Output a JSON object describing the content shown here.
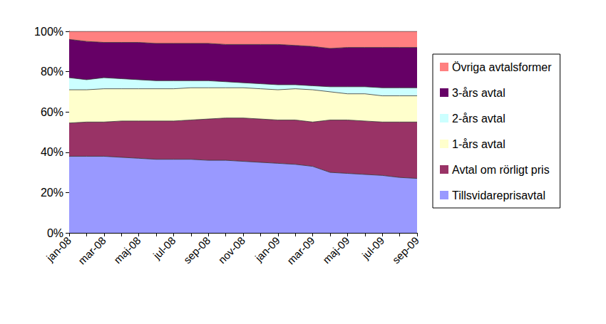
{
  "chart_data": {
    "type": "area",
    "stacked": true,
    "grid": false,
    "legend": "right",
    "categories": [
      "jan-08",
      null,
      "mar-08",
      null,
      "maj-08",
      null,
      "jul-08",
      null,
      "sep-08",
      null,
      "nov-08",
      null,
      "jan-09",
      null,
      "mar-09",
      null,
      "maj-09",
      null,
      "jul-09",
      null,
      "sep-09"
    ],
    "ylim": [
      0,
      100
    ],
    "yticks": [
      {
        "value": 0,
        "label": "0%"
      },
      {
        "value": 20,
        "label": "20%"
      },
      {
        "value": 40,
        "label": "40%"
      },
      {
        "value": 60,
        "label": "60%"
      },
      {
        "value": 80,
        "label": "80%"
      },
      {
        "value": 100,
        "label": "100%"
      }
    ],
    "series": [
      {
        "name": "Tillsvidareprisavtal",
        "color": "#9999FF",
        "values": [
          38,
          38,
          38,
          37.5,
          37,
          36.5,
          36.5,
          36.5,
          36,
          36,
          35.5,
          35,
          34.5,
          34,
          33,
          30,
          29.5,
          29,
          28.5,
          27.5,
          27
        ]
      },
      {
        "name": "Avtal om rörligt pris",
        "color": "#993366",
        "values": [
          16.5,
          17,
          17,
          18,
          18.5,
          19,
          19,
          19.5,
          20.5,
          21,
          21.5,
          21.5,
          21.5,
          22,
          22,
          26,
          26.5,
          26.5,
          26.5,
          27.5,
          28
        ]
      },
      {
        "name": "1-års avtal",
        "color": "#FFFFCC",
        "values": [
          16.5,
          16,
          16.5,
          16,
          16,
          16,
          16,
          16,
          15.5,
          15,
          15,
          15,
          15,
          15.5,
          16,
          14,
          13,
          13.5,
          13,
          13,
          13
        ]
      },
      {
        "name": "2-års avtal",
        "color": "#CCFFFF",
        "values": [
          6,
          5,
          5.5,
          5,
          4.5,
          4,
          4,
          3.5,
          3.5,
          3,
          2.5,
          2.5,
          2.5,
          2,
          2,
          2.5,
          3.5,
          3.5,
          4,
          4,
          4
        ]
      },
      {
        "name": "3-års avtal",
        "color": "#660066",
        "values": [
          19,
          19,
          17.5,
          18,
          18.5,
          18.5,
          18.5,
          18.5,
          18.5,
          18.5,
          19,
          19.5,
          20,
          19.5,
          19.5,
          19,
          19.5,
          19.5,
          20,
          20,
          20
        ]
      },
      {
        "name": "Övriga avtalsformer",
        "color": "#FF8080",
        "values": [
          4,
          5,
          5.5,
          5.5,
          5.5,
          6,
          6,
          6,
          6,
          6.5,
          6.5,
          6.5,
          6.5,
          7,
          7.5,
          8.5,
          8,
          8,
          8,
          8,
          8
        ]
      }
    ]
  }
}
